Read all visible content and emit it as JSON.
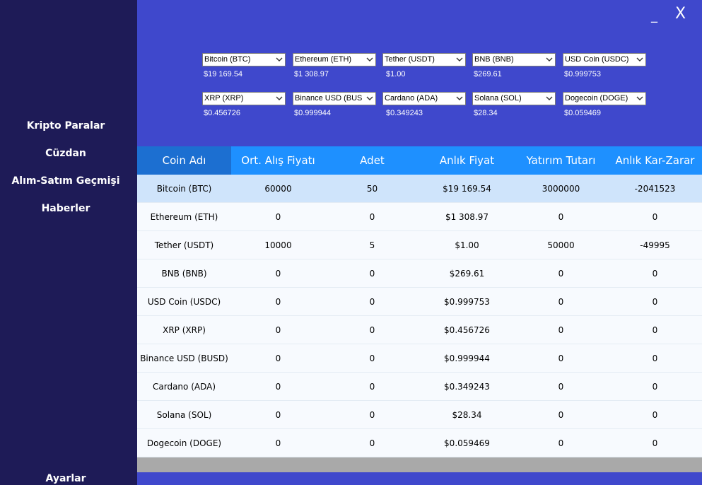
{
  "sidebar": {
    "items": [
      "Kripto Paralar",
      "Cüzdan",
      "Alım-Satım Geçmişi",
      "Haberler"
    ],
    "settings": "Ayarlar"
  },
  "window": {
    "minimize": "_",
    "close": "X"
  },
  "tickers": [
    {
      "name": "Bitcoin (BTC)",
      "price": "$19 169.54"
    },
    {
      "name": "Ethereum (ETH)",
      "price": "$1 308.97"
    },
    {
      "name": "Tether (USDT)",
      "price": "$1.00"
    },
    {
      "name": "BNB (BNB)",
      "price": "$269.61"
    },
    {
      "name": "USD Coin (USDC)",
      "price": "$0.999753"
    },
    {
      "name": "XRP (XRP)",
      "price": "$0.456726"
    },
    {
      "name": "Binance USD (BUSD)",
      "price": "$0.999944"
    },
    {
      "name": "Cardano (ADA)",
      "price": "$0.349243"
    },
    {
      "name": "Solana (SOL)",
      "price": "$28.34"
    },
    {
      "name": "Dogecoin (DOGE)",
      "price": "$0.059469"
    }
  ],
  "table": {
    "columns": [
      "Coin Adı",
      "Ort. Alış Fiyatı",
      "Adet",
      "Anlık Fiyat",
      "Yatırım Tutarı",
      "Anlık Kar-Zarar"
    ],
    "rows": [
      [
        "Bitcoin (BTC)",
        "60000",
        "50",
        "$19 169.54",
        "3000000",
        "-2041523"
      ],
      [
        "Ethereum (ETH)",
        "0",
        "0",
        "$1 308.97",
        "0",
        "0"
      ],
      [
        "Tether (USDT)",
        "10000",
        "5",
        "$1.00",
        "50000",
        "-49995"
      ],
      [
        "BNB (BNB)",
        "0",
        "0",
        "$269.61",
        "0",
        "0"
      ],
      [
        "USD Coin (USDC)",
        "0",
        "0",
        "$0.999753",
        "0",
        "0"
      ],
      [
        "XRP (XRP)",
        "0",
        "0",
        "$0.456726",
        "0",
        "0"
      ],
      [
        "Binance USD (BUSD)",
        "0",
        "0",
        "$0.999944",
        "0",
        "0"
      ],
      [
        "Cardano (ADA)",
        "0",
        "0",
        "$0.349243",
        "0",
        "0"
      ],
      [
        "Solana (SOL)",
        "0",
        "0",
        "$28.34",
        "0",
        "0"
      ],
      [
        "Dogecoin (DOGE)",
        "0",
        "0",
        "$0.059469",
        "0",
        "0"
      ]
    ]
  },
  "colors": {
    "sidebar": "#1e1b57",
    "main": "#3f48cc",
    "header": "#1e90ff",
    "header_selected": "#1c6fd1",
    "row_selected": "#cfe4fb"
  }
}
